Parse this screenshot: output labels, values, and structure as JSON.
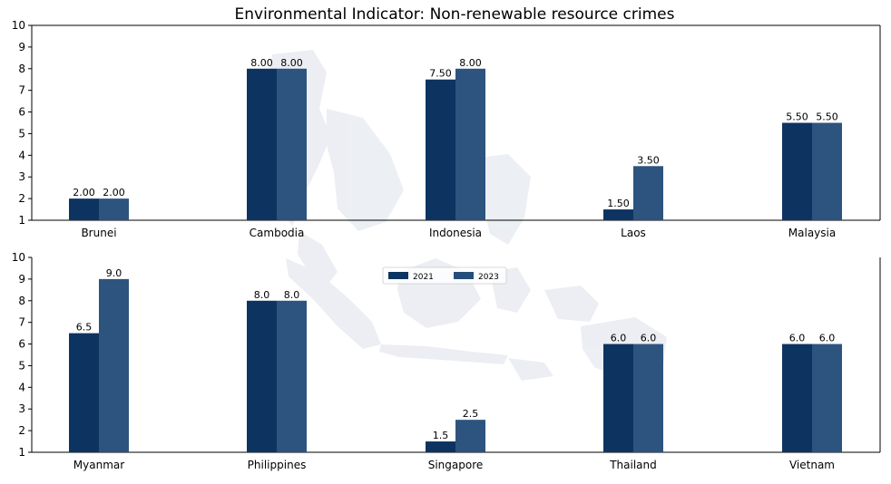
{
  "chart_data": {
    "type": "bar",
    "title": "Environmental Indicator: Non-renewable resource crimes",
    "xlabel": "",
    "ylabel": "",
    "ylim": [
      1,
      10
    ],
    "yticks": [
      1,
      2,
      3,
      4,
      5,
      6,
      7,
      8,
      9,
      10
    ],
    "grid": false,
    "legend": {
      "placement": "center",
      "entries": [
        "2021",
        "2023"
      ]
    },
    "colors": {
      "2021": "#0d3461",
      "2023": "#264e7a"
    },
    "panels": [
      {
        "categories": [
          "Brunei",
          "Cambodia",
          "Indonesia",
          "Laos",
          "Malaysia"
        ],
        "series": [
          {
            "name": "2021",
            "values": [
              2.0,
              8.0,
              7.5,
              1.5,
              5.5
            ],
            "labels": [
              "2.00",
              "8.00",
              "7.50",
              "1.50",
              "5.50"
            ]
          },
          {
            "name": "2023",
            "values": [
              2.0,
              8.0,
              8.0,
              3.5,
              5.5
            ],
            "labels": [
              "2.00",
              "8.00",
              "8.00",
              "3.50",
              "5.50"
            ]
          }
        ]
      },
      {
        "categories": [
          "Myanmar",
          "Philippines",
          "Singapore",
          "Thailand",
          "Vietnam"
        ],
        "series": [
          {
            "name": "2021",
            "values": [
              6.5,
              8.0,
              1.5,
              6.0,
              6.0
            ],
            "labels": [
              "6.5",
              "8.0",
              "1.5",
              "6.0",
              "6.0"
            ]
          },
          {
            "name": "2023",
            "values": [
              9.0,
              8.0,
              2.5,
              6.0,
              6.0
            ],
            "labels": [
              "9.0",
              "8.0",
              "2.5",
              "6.0",
              "6.0"
            ]
          }
        ]
      }
    ]
  }
}
